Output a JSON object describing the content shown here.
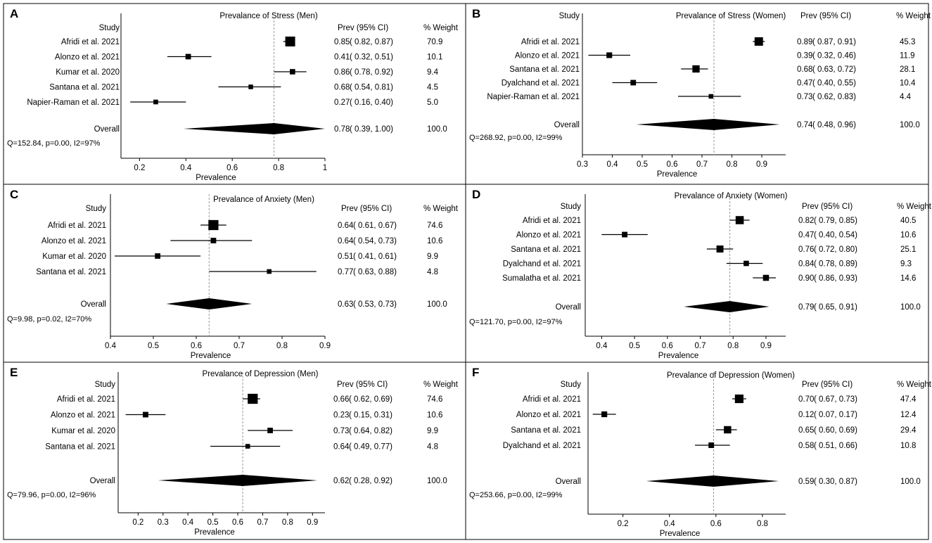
{
  "figure": {
    "border_color": "#000000",
    "ci_color": "#000000",
    "marker_color": "#000000",
    "diamond_color": "#000000",
    "reference_line_color": "#999999"
  },
  "chart_data": [
    {
      "panel": "A",
      "type": "forest",
      "title": "Prevalance of Stress (Men)",
      "headers": {
        "study": "Study",
        "prev": "Prev (95% CI)",
        "weight": "% Weight"
      },
      "xlabel": "Prevalence",
      "xlim": [
        0.12,
        1.0
      ],
      "xticks": [
        "0.2",
        "0.4",
        "0.6",
        "0.8",
        "1"
      ],
      "pooled_line": 0.78,
      "studies": [
        {
          "name": "Afridi et al. 2021",
          "est": 0.85,
          "lo": 0.82,
          "hi": 0.87,
          "weight": 70.9,
          "prev": "0.85",
          "ci": "( 0.82, 0.87)",
          "w": "70.9"
        },
        {
          "name": "Alonzo et al. 2021",
          "est": 0.41,
          "lo": 0.32,
          "hi": 0.51,
          "weight": 10.1,
          "prev": "0.41",
          "ci": "( 0.32, 0.51)",
          "w": "10.1"
        },
        {
          "name": "Kumar et al. 2020",
          "est": 0.86,
          "lo": 0.78,
          "hi": 0.92,
          "weight": 9.4,
          "prev": "0.86",
          "ci": "( 0.78, 0.92)",
          "w": "9.4"
        },
        {
          "name": "Santana et al. 2021",
          "est": 0.68,
          "lo": 0.54,
          "hi": 0.81,
          "weight": 4.5,
          "prev": "0.68",
          "ci": "( 0.54, 0.81)",
          "w": "4.5"
        },
        {
          "name": "Napier-Raman et al. 2021",
          "est": 0.27,
          "lo": 0.16,
          "hi": 0.4,
          "weight": 5.0,
          "prev": "0.27",
          "ci": "( 0.16, 0.40)",
          "w": "5.0"
        }
      ],
      "overall": {
        "name": "Overall",
        "est": 0.78,
        "lo": 0.39,
        "hi": 1.0,
        "prev": "0.78",
        "ci": "( 0.39, 1.00)",
        "w": "100.0"
      },
      "heterogeneity": "Q=152.84, p=0.00, I2=97%"
    },
    {
      "panel": "B",
      "type": "forest",
      "title": "Prevalance of Stress (Women)",
      "headers": {
        "study": "Study",
        "prev": "Prev (95% CI)",
        "weight": "% Weight"
      },
      "xlabel": "Prevalence",
      "xlim": [
        0.3,
        0.98
      ],
      "xticks": [
        "0.3",
        "0.4",
        "0.5",
        "0.6",
        "0.7",
        "0.8",
        "0.9"
      ],
      "pooled_line": 0.74,
      "studies": [
        {
          "name": "Afridi et al. 2021",
          "est": 0.89,
          "lo": 0.87,
          "hi": 0.91,
          "weight": 45.3,
          "prev": "0.89",
          "ci": "( 0.87, 0.91)",
          "w": "45.3"
        },
        {
          "name": "Alonzo et al. 2021",
          "est": 0.39,
          "lo": 0.32,
          "hi": 0.46,
          "weight": 11.9,
          "prev": "0.39",
          "ci": "( 0.32, 0.46)",
          "w": "11.9"
        },
        {
          "name": "Santana et al. 2021",
          "est": 0.68,
          "lo": 0.63,
          "hi": 0.72,
          "weight": 28.1,
          "prev": "0.68",
          "ci": "( 0.63, 0.72)",
          "w": "28.1"
        },
        {
          "name": "Dyalchand et al. 2021",
          "est": 0.47,
          "lo": 0.4,
          "hi": 0.55,
          "weight": 10.4,
          "prev": "0.47",
          "ci": "( 0.40, 0.55)",
          "w": "10.4"
        },
        {
          "name": "Napier-Raman et al. 2021",
          "est": 0.73,
          "lo": 0.62,
          "hi": 0.83,
          "weight": 4.4,
          "prev": "0.73",
          "ci": "( 0.62, 0.83)",
          "w": "4.4"
        }
      ],
      "overall": {
        "name": "Overall",
        "est": 0.74,
        "lo": 0.48,
        "hi": 0.96,
        "prev": "0.74",
        "ci": "( 0.48, 0.96)",
        "w": "100.0"
      },
      "heterogeneity": "Q=268.92, p=0.00, I2=99%"
    },
    {
      "panel": "C",
      "type": "forest",
      "title": "Prevalance of Anxiety (Men)",
      "headers": {
        "study": "Study",
        "prev": "Prev (95% CI)",
        "weight": "% Weight"
      },
      "xlabel": "Prevalence",
      "xlim": [
        0.4,
        0.9
      ],
      "xticks": [
        "0.4",
        "0.5",
        "0.6",
        "0.7",
        "0.8",
        "0.9"
      ],
      "pooled_line": 0.63,
      "studies": [
        {
          "name": "Afridi et al. 2021",
          "est": 0.64,
          "lo": 0.61,
          "hi": 0.67,
          "weight": 74.6,
          "prev": "0.64",
          "ci": "( 0.61, 0.67)",
          "w": "74.6"
        },
        {
          "name": "Alonzo et al. 2021",
          "est": 0.64,
          "lo": 0.54,
          "hi": 0.73,
          "weight": 10.6,
          "prev": "0.64",
          "ci": "( 0.54, 0.73)",
          "w": "10.6"
        },
        {
          "name": "Kumar et al. 2020",
          "est": 0.51,
          "lo": 0.41,
          "hi": 0.61,
          "weight": 9.9,
          "prev": "0.51",
          "ci": "( 0.41, 0.61)",
          "w": "9.9"
        },
        {
          "name": "Santana et al. 2021",
          "est": 0.77,
          "lo": 0.63,
          "hi": 0.88,
          "weight": 4.8,
          "prev": "0.77",
          "ci": "( 0.63, 0.88)",
          "w": "4.8"
        }
      ],
      "overall": {
        "name": "Overall",
        "est": 0.63,
        "lo": 0.53,
        "hi": 0.73,
        "prev": "0.63",
        "ci": "( 0.53, 0.73)",
        "w": "100.0"
      },
      "heterogeneity": "Q=9.98, p=0.02, I2=70%"
    },
    {
      "panel": "D",
      "type": "forest",
      "title": "Prevalance of Anxiety (Women)",
      "headers": {
        "study": "Study",
        "prev": "Prev (95% CI)",
        "weight": "% Weight"
      },
      "xlabel": "Prevalence",
      "xlim": [
        0.35,
        0.96
      ],
      "xticks": [
        "0.4",
        "0.5",
        "0.6",
        "0.7",
        "0.8",
        "0.9"
      ],
      "pooled_line": 0.79,
      "studies": [
        {
          "name": "Afridi et al. 2021",
          "est": 0.82,
          "lo": 0.79,
          "hi": 0.85,
          "weight": 40.5,
          "prev": "0.82",
          "ci": "( 0.79, 0.85)",
          "w": "40.5"
        },
        {
          "name": "Alonzo et al. 2021",
          "est": 0.47,
          "lo": 0.4,
          "hi": 0.54,
          "weight": 10.6,
          "prev": "0.47",
          "ci": "( 0.40, 0.54)",
          "w": "10.6"
        },
        {
          "name": "Santana et al. 2021",
          "est": 0.76,
          "lo": 0.72,
          "hi": 0.8,
          "weight": 25.1,
          "prev": "0.76",
          "ci": "( 0.72, 0.80)",
          "w": "25.1"
        },
        {
          "name": "Dyalchand et al. 2021",
          "est": 0.84,
          "lo": 0.78,
          "hi": 0.89,
          "weight": 9.3,
          "prev": "0.84",
          "ci": "( 0.78, 0.89)",
          "w": "9.3"
        },
        {
          "name": "Sumalatha et al. 2021",
          "est": 0.9,
          "lo": 0.86,
          "hi": 0.93,
          "weight": 14.6,
          "prev": "0.90",
          "ci": "( 0.86, 0.93)",
          "w": "14.6"
        }
      ],
      "overall": {
        "name": "Overall",
        "est": 0.79,
        "lo": 0.65,
        "hi": 0.91,
        "prev": "0.79",
        "ci": "( 0.65, 0.91)",
        "w": "100.0"
      },
      "heterogeneity": "Q=121.70, p=0.00, I2=97%"
    },
    {
      "panel": "E",
      "type": "forest",
      "title": "Prevalance of Depression (Men)",
      "headers": {
        "study": "Study",
        "prev": "Prev (95% CI)",
        "weight": "% Weight"
      },
      "xlabel": "Prevalence",
      "xlim": [
        0.12,
        0.95
      ],
      "xticks": [
        "0.2",
        "0.3",
        "0.4",
        "0.5",
        "0.6",
        "0.7",
        "0.8",
        "0.9"
      ],
      "pooled_line": 0.62,
      "studies": [
        {
          "name": "Afridi et al. 2021",
          "est": 0.66,
          "lo": 0.62,
          "hi": 0.69,
          "weight": 74.6,
          "prev": "0.66",
          "ci": "( 0.62, 0.69)",
          "w": "74.6"
        },
        {
          "name": "Alonzo et al. 2021",
          "est": 0.23,
          "lo": 0.15,
          "hi": 0.31,
          "weight": 10.6,
          "prev": "0.23",
          "ci": "( 0.15, 0.31)",
          "w": "10.6"
        },
        {
          "name": "Kumar et al. 2020",
          "est": 0.73,
          "lo": 0.64,
          "hi": 0.82,
          "weight": 9.9,
          "prev": "0.73",
          "ci": "( 0.64, 0.82)",
          "w": "9.9"
        },
        {
          "name": "Santana et al. 2021",
          "est": 0.64,
          "lo": 0.49,
          "hi": 0.77,
          "weight": 4.8,
          "prev": "0.64",
          "ci": "( 0.49, 0.77)",
          "w": "4.8"
        }
      ],
      "overall": {
        "name": "Overall",
        "est": 0.62,
        "lo": 0.28,
        "hi": 0.92,
        "prev": "0.62",
        "ci": "( 0.28, 0.92)",
        "w": "100.0"
      },
      "heterogeneity": "Q=79.96, p=0.00, I2=96%"
    },
    {
      "panel": "F",
      "type": "forest",
      "title": "Prevalance of Depression (Women)",
      "headers": {
        "study": "Study",
        "prev": "Prev (95% CI)",
        "weight": "% Weight"
      },
      "xlabel": "Prevalence",
      "xlim": [
        0.05,
        0.9
      ],
      "xticks": [
        "0.2",
        "0.4",
        "0.6",
        "0.8"
      ],
      "pooled_line": 0.59,
      "studies": [
        {
          "name": "Afridi et al. 2021",
          "est": 0.7,
          "lo": 0.67,
          "hi": 0.73,
          "weight": 47.4,
          "prev": "0.70",
          "ci": "( 0.67, 0.73)",
          "w": "47.4"
        },
        {
          "name": "Alonzo et al. 2021",
          "est": 0.12,
          "lo": 0.07,
          "hi": 0.17,
          "weight": 12.4,
          "prev": "0.12",
          "ci": "( 0.07, 0.17)",
          "w": "12.4"
        },
        {
          "name": "Santana et al. 2021",
          "est": 0.65,
          "lo": 0.6,
          "hi": 0.69,
          "weight": 29.4,
          "prev": "0.65",
          "ci": "( 0.60, 0.69)",
          "w": "29.4"
        },
        {
          "name": "Dyalchand et al. 2021",
          "est": 0.58,
          "lo": 0.51,
          "hi": 0.66,
          "weight": 10.8,
          "prev": "0.58",
          "ci": "( 0.51, 0.66)",
          "w": "10.8"
        }
      ],
      "overall": {
        "name": "Overall",
        "est": 0.59,
        "lo": 0.3,
        "hi": 0.87,
        "prev": "0.59",
        "ci": "( 0.30, 0.87)",
        "w": "100.0"
      },
      "heterogeneity": "Q=253.66, p=0.00, I2=99%"
    }
  ]
}
